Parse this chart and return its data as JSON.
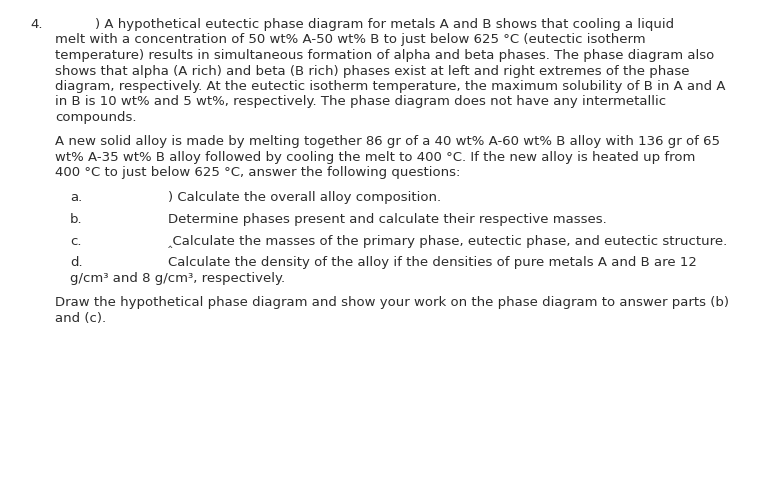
{
  "background_color": "#ffffff",
  "text_color": "#2c2c2c",
  "question_number": "4.",
  "p1_line1_prefix": ") A hypothetical eutectic phase diagram for metals A and B shows that cooling a liquid",
  "p1_line2": "melt with a concentration of 50 wt% A-50 wt% B to just below 625 °C (eutectic isotherm",
  "p1_line3": "temperature) results in simultaneous formation of alpha and beta phases. The phase diagram also",
  "p1_line4": "shows that alpha (A rich) and beta (B rich) phases exist at left and right extremes of the phase",
  "p1_line5": "diagram, respectively. At the eutectic isotherm temperature, the maximum solubility of B in A and A",
  "p1_line6": "in B is 10 wt% and 5 wt%, respectively. The phase diagram does not have any intermetallic",
  "p1_line7": "compounds.",
  "p2_line1": "A new solid alloy is made by melting together 86 gr of a 40 wt% A-60 wt% B alloy with 136 gr of 65",
  "p2_line2": "wt% A-35 wt% B alloy followed by cooling the melt to 400 °C. If the new alloy is heated up from",
  "p2_line3": "400 °C to just below 625 °C, answer the following questions:",
  "sub_a_label": "a.",
  "sub_a_text": ") Calculate the overall alloy composition.",
  "sub_b_label": "b.",
  "sub_b_text": "Determine phases present and calculate their respective masses.",
  "sub_c_label": "c.",
  "sub_c_text": "‸Calculate the masses of the primary phase, eutectic phase, and eutectic structure.",
  "sub_d_label": "d.",
  "sub_d_line1": "Calculate the density of the alloy if the densities of pure metals A and B are 12",
  "sub_d_line2": "g/cm³ and 8 g/cm³, respectively.",
  "footer_line1": "Draw the hypothetical phase diagram and show your work on the phase diagram to answer parts (b)",
  "footer_line2": "and (c).",
  "font_size": 9.5,
  "fig_width": 7.76,
  "fig_height": 4.83
}
